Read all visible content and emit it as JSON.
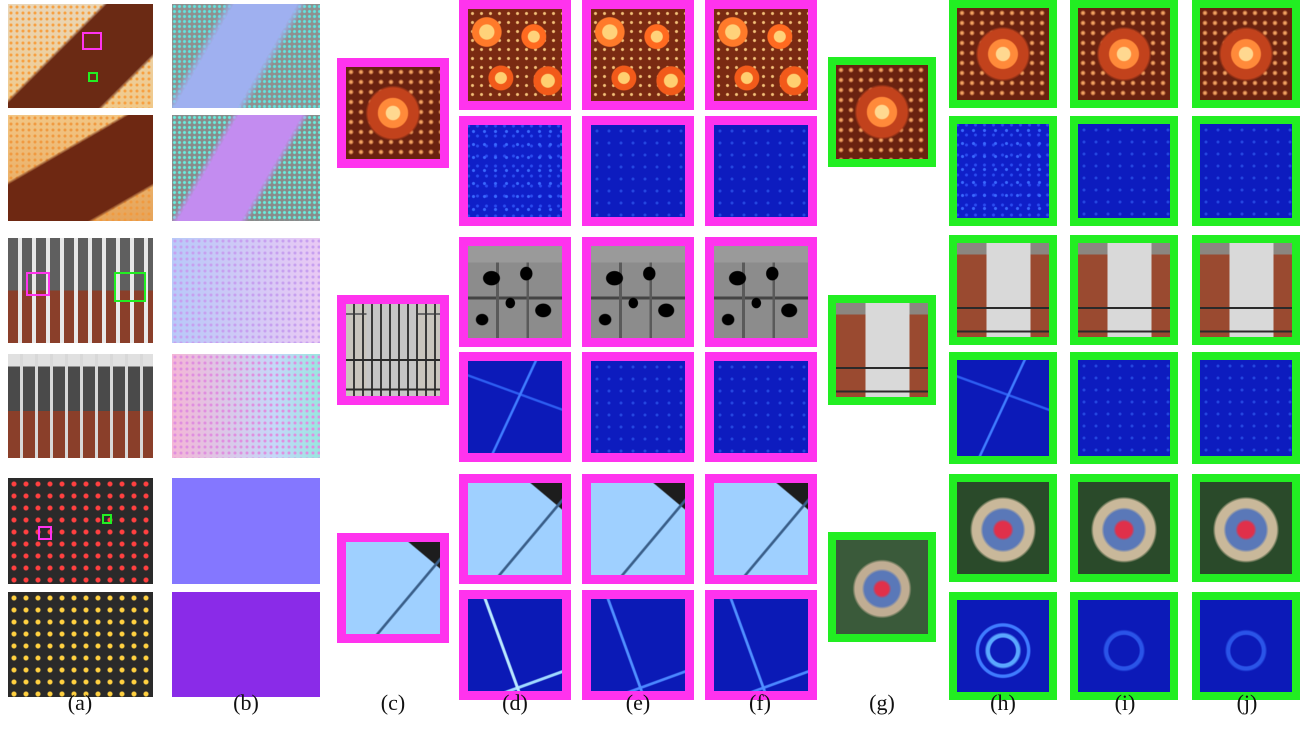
{
  "figure": {
    "labels": [
      "(a)",
      "(b)",
      "(c)",
      "(d)",
      "(e)",
      "(f)",
      "(g)",
      "(h)",
      "(i)",
      "(j)"
    ]
  },
  "colors": {
    "pink_frame": "#ff33ee",
    "green_frame": "#22ee22"
  }
}
